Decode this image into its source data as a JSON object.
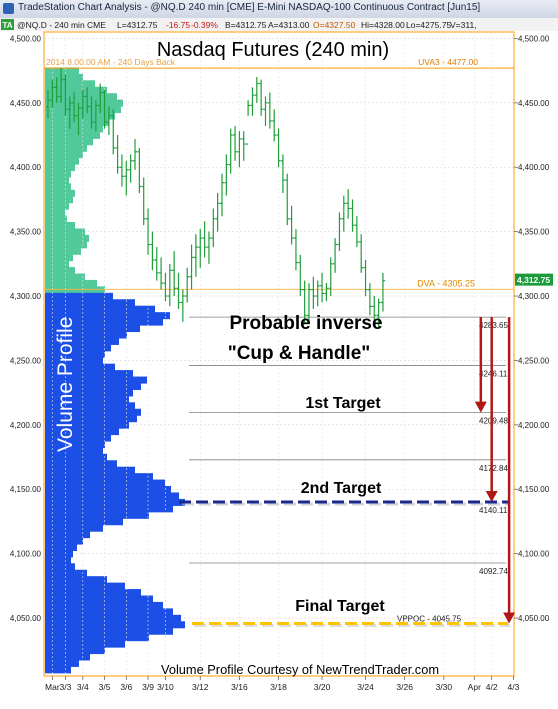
{
  "window": {
    "title": "TradeStation Chart Analysis - @NQ.D 240 min [CME] E-Mini NASDAQ-100 Continuous Contract [Jun15]"
  },
  "header": {
    "tag": "TA",
    "symbol_info": "@NQ.D - 240 min CME",
    "last": "L=4312.75",
    "change": "-16.75",
    "change_pct": "-0.39%",
    "bid": "B=4312.75",
    "ask": "A=4313.00",
    "open": "O=4327.50",
    "high": "Hi=4328.00",
    "low": "Lo=4275.75",
    "volume": "V=311,"
  },
  "colors": {
    "bar": "#1f9e3a",
    "vp_upper": "#52c99a",
    "vp_lower": "#1c4fe6",
    "price_marker": "#1a9c3c",
    "arrow": "#b01818",
    "orange": "#ff9a00",
    "level2_line": "#1a2a8c",
    "final_line": "#ffc400"
  },
  "chart_data": {
    "type": "ohlc",
    "title": "Nasdaq Futures (240 min)",
    "subtitle": "2014 8.00.00 AM - 240 Days Back",
    "ylim": [
      4005,
      4505
    ],
    "yticks": [
      4050,
      4100,
      4150,
      4200,
      4250,
      4300,
      4350,
      4400,
      4450,
      4500
    ],
    "ytick_labels": [
      "4,050.00",
      "4,100.00",
      "4,150.00",
      "4,200.00",
      "4,250.00",
      "4,300.00",
      "4,350.00",
      "4,400.00",
      "4,450.00",
      "4,500.00"
    ],
    "x_labels": [
      {
        "label": "Mar",
        "bar": 1
      },
      {
        "label": "3/3",
        "bar": 4
      },
      {
        "label": "3/4",
        "bar": 8
      },
      {
        "label": "3/5",
        "bar": 13
      },
      {
        "label": "3/6",
        "bar": 18
      },
      {
        "label": "3/9",
        "bar": 23
      },
      {
        "label": "3/10",
        "bar": 27
      },
      {
        "label": "3/12",
        "bar": 35
      },
      {
        "label": "3/16",
        "bar": 44
      },
      {
        "label": "3/18",
        "bar": 53
      },
      {
        "label": "3/20",
        "bar": 63
      },
      {
        "label": "3/24",
        "bar": 73
      },
      {
        "label": "3/26",
        "bar": 82
      },
      {
        "label": "3/30",
        "bar": 91
      },
      {
        "label": "Apr",
        "bar": 98
      },
      {
        "label": "4/2",
        "bar": 102
      },
      {
        "label": "4/3",
        "bar": 107
      }
    ],
    "bars": [
      [
        4447,
        4460,
        4438,
        4452
      ],
      [
        4452,
        4468,
        4446,
        4462
      ],
      [
        4462,
        4470,
        4450,
        4455
      ],
      [
        4455,
        4477,
        4450,
        4468
      ],
      [
        4468,
        4472,
        4440,
        4445
      ],
      [
        4445,
        4455,
        4430,
        4450
      ],
      [
        4450,
        4458,
        4435,
        4440
      ],
      [
        4440,
        4450,
        4425,
        4446
      ],
      [
        4446,
        4460,
        4438,
        4455
      ],
      [
        4455,
        4462,
        4442,
        4447
      ],
      [
        4447,
        4455,
        4430,
        4435
      ],
      [
        4435,
        4452,
        4428,
        4448
      ],
      [
        4448,
        4465,
        4442,
        4458
      ],
      [
        4458,
        4460,
        4430,
        4435
      ],
      [
        4435,
        4447,
        4425,
        4440
      ],
      [
        4440,
        4445,
        4410,
        4415
      ],
      [
        4415,
        4425,
        4395,
        4400
      ],
      [
        4400,
        4410,
        4385,
        4393
      ],
      [
        4393,
        4405,
        4378,
        4398
      ],
      [
        4398,
        4410,
        4388,
        4405
      ],
      [
        4405,
        4422,
        4398,
        4412
      ],
      [
        4412,
        4415,
        4380,
        4385
      ],
      [
        4385,
        4392,
        4355,
        4360
      ],
      [
        4360,
        4368,
        4332,
        4340
      ],
      [
        4340,
        4350,
        4320,
        4328
      ],
      [
        4328,
        4338,
        4312,
        4318
      ],
      [
        4318,
        4330,
        4305,
        4310
      ],
      [
        4310,
        4318,
        4296,
        4300
      ],
      [
        4300,
        4325,
        4292,
        4320
      ],
      [
        4320,
        4335,
        4300,
        4306
      ],
      [
        4306,
        4318,
        4290,
        4295
      ],
      [
        4295,
        4305,
        4280,
        4300
      ],
      [
        4300,
        4322,
        4295,
        4315
      ],
      [
        4315,
        4340,
        4305,
        4330
      ],
      [
        4330,
        4348,
        4315,
        4338
      ],
      [
        4338,
        4352,
        4322,
        4345
      ],
      [
        4345,
        4358,
        4330,
        4338
      ],
      [
        4338,
        4350,
        4325,
        4345
      ],
      [
        4345,
        4368,
        4338,
        4360
      ],
      [
        4360,
        4380,
        4350,
        4372
      ],
      [
        4372,
        4395,
        4362,
        4388
      ],
      [
        4388,
        4410,
        4378,
        4402
      ],
      [
        4402,
        4430,
        4395,
        4425
      ],
      [
        4425,
        4432,
        4405,
        4412
      ],
      [
        4412,
        4428,
        4400,
        4422
      ],
      [
        4422,
        4428,
        4405,
        4418
      ],
      [
        4418,
        4452,
        4440,
        4448
      ],
      [
        4448,
        4462,
        4440,
        4456
      ],
      [
        4456,
        4470,
        4450,
        4465
      ],
      [
        4465,
        4468,
        4440,
        4445
      ],
      [
        4445,
        4455,
        4432,
        4450
      ],
      [
        4450,
        4458,
        4430,
        4436
      ],
      [
        4436,
        4445,
        4420,
        4425
      ],
      [
        4425,
        4430,
        4400,
        4405
      ],
      [
        4405,
        4410,
        4380,
        4390
      ],
      [
        4390,
        4395,
        4355,
        4360
      ],
      [
        4360,
        4370,
        4340,
        4345
      ],
      [
        4345,
        4352,
        4320,
        4326
      ],
      [
        4326,
        4332,
        4300,
        4305
      ],
      [
        4305,
        4312,
        4278,
        4285
      ],
      [
        4285,
        4310,
        4280,
        4305
      ],
      [
        4305,
        4315,
        4290,
        4300
      ],
      [
        4300,
        4312,
        4292,
        4308
      ],
      [
        4308,
        4318,
        4295,
        4302
      ],
      [
        4302,
        4310,
        4296,
        4306
      ],
      [
        4306,
        4330,
        4300,
        4325
      ],
      [
        4325,
        4345,
        4318,
        4340
      ],
      [
        4340,
        4365,
        4335,
        4360
      ],
      [
        4360,
        4378,
        4350,
        4372
      ],
      [
        4372,
        4383,
        4360,
        4368
      ],
      [
        4368,
        4375,
        4350,
        4355
      ],
      [
        4355,
        4362,
        4338,
        4342
      ],
      [
        4342,
        4348,
        4318,
        4322
      ],
      [
        4322,
        4328,
        4300,
        4305
      ],
      [
        4305,
        4310,
        4285,
        4292
      ],
      [
        4292,
        4300,
        4278,
        4285
      ],
      [
        4285,
        4298,
        4276,
        4295
      ],
      [
        4295,
        4318,
        4288,
        4312
      ]
    ],
    "volume_profile": {
      "label": "Volume Profile",
      "split_price": 4305,
      "bins": [
        [
          4475,
          34
        ],
        [
          4470,
          38
        ],
        [
          4465,
          50
        ],
        [
          4460,
          62
        ],
        [
          4455,
          72
        ],
        [
          4450,
          78
        ],
        [
          4445,
          76
        ],
        [
          4440,
          70
        ],
        [
          4435,
          64
        ],
        [
          4430,
          58
        ],
        [
          4425,
          55
        ],
        [
          4420,
          48
        ],
        [
          4415,
          42
        ],
        [
          4410,
          38
        ],
        [
          4405,
          34
        ],
        [
          4400,
          30
        ],
        [
          4395,
          26
        ],
        [
          4390,
          24
        ],
        [
          4385,
          26
        ],
        [
          4380,
          30
        ],
        [
          4375,
          28
        ],
        [
          4370,
          24
        ],
        [
          4365,
          20
        ],
        [
          4360,
          22
        ],
        [
          4355,
          30
        ],
        [
          4350,
          40
        ],
        [
          4345,
          44
        ],
        [
          4340,
          42
        ],
        [
          4335,
          36
        ],
        [
          4330,
          28
        ],
        [
          4325,
          24
        ],
        [
          4320,
          30
        ],
        [
          4315,
          40
        ],
        [
          4310,
          52
        ],
        [
          4305,
          60
        ],
        [
          4300,
          68
        ],
        [
          4295,
          90
        ],
        [
          4290,
          110
        ],
        [
          4285,
          125
        ],
        [
          4280,
          118
        ],
        [
          4275,
          95
        ],
        [
          4270,
          82
        ],
        [
          4265,
          74
        ],
        [
          4260,
          66
        ],
        [
          4255,
          60
        ],
        [
          4250,
          58
        ],
        [
          4245,
          70
        ],
        [
          4240,
          88
        ],
        [
          4235,
          102
        ],
        [
          4230,
          96
        ],
        [
          4225,
          88
        ],
        [
          4220,
          84
        ],
        [
          4215,
          90
        ],
        [
          4210,
          96
        ],
        [
          4205,
          92
        ],
        [
          4200,
          84
        ],
        [
          4195,
          74
        ],
        [
          4190,
          66
        ],
        [
          4185,
          60
        ],
        [
          4180,
          58
        ],
        [
          4175,
          62
        ],
        [
          4170,
          72
        ],
        [
          4165,
          90
        ],
        [
          4160,
          108
        ],
        [
          4155,
          120
        ],
        [
          4150,
          126
        ],
        [
          4145,
          134
        ],
        [
          4140,
          140
        ],
        [
          4135,
          128
        ],
        [
          4130,
          104
        ],
        [
          4125,
          78
        ],
        [
          4120,
          58
        ],
        [
          4115,
          45
        ],
        [
          4110,
          38
        ],
        [
          4105,
          32
        ],
        [
          4100,
          28
        ],
        [
          4095,
          26
        ],
        [
          4090,
          30
        ],
        [
          4085,
          42
        ],
        [
          4080,
          62
        ],
        [
          4075,
          80
        ],
        [
          4070,
          96
        ],
        [
          4065,
          108
        ],
        [
          4060,
          118
        ],
        [
          4055,
          128
        ],
        [
          4050,
          136
        ],
        [
          4045,
          140
        ],
        [
          4040,
          128
        ],
        [
          4035,
          104
        ],
        [
          4030,
          80
        ],
        [
          4025,
          60
        ],
        [
          4020,
          45
        ],
        [
          4015,
          34
        ],
        [
          4010,
          26
        ]
      ]
    },
    "levels": [
      {
        "value": 4283.65,
        "label": "4283.65",
        "style": "gray"
      },
      {
        "value": 4246.11,
        "label": "4246.11",
        "style": "gray"
      },
      {
        "value": 4209.48,
        "label": "4209.48",
        "style": "gray"
      },
      {
        "value": 4172.84,
        "label": "4172.84",
        "style": "gray"
      },
      {
        "value": 4140.11,
        "label": "4140.11",
        "style": "target2"
      },
      {
        "value": 4092.74,
        "label": "4092.74",
        "style": "gray"
      },
      {
        "value": 4045.75,
        "label": "VPPOC - 4045.75",
        "style": "final"
      }
    ],
    "uva": {
      "value": 4477,
      "label": "UVA3 - 4477.00"
    },
    "poc": {
      "value": 4305.25,
      "label": "DVA - 4305.25"
    },
    "last_price": {
      "value": 4312.75,
      "label": "4,312.75"
    },
    "annotations": {
      "pattern_line1": "Probable inverse",
      "pattern_line2": "\"Cup & Handle\"",
      "target1": "1st Target",
      "target2": "2nd Target",
      "final": "Final Target",
      "credit": "Volume Profile Courtesy of NewTrendTrader.com"
    },
    "arrows": [
      {
        "bar": 99.5,
        "from": 4283.65,
        "to": 4209.48
      },
      {
        "bar": 102,
        "from": 4283.65,
        "to": 4140.11
      },
      {
        "bar": 106,
        "from": 4283.65,
        "to": 4045.75
      }
    ]
  }
}
